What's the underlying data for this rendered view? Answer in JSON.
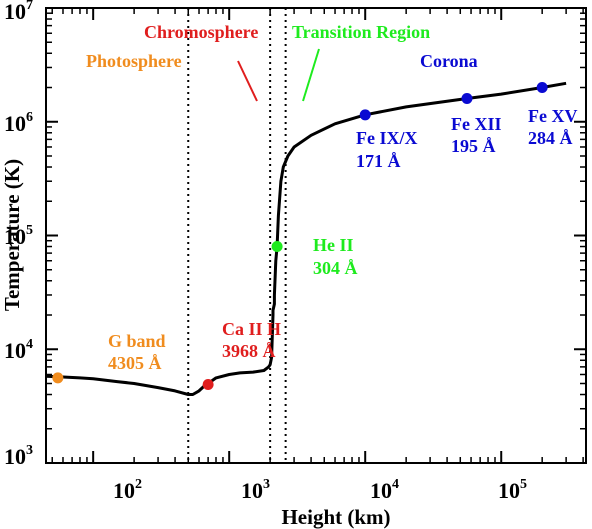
{
  "chart_data": {
    "type": "line",
    "title": "",
    "xlabel": "Height (km)",
    "ylabel": "Temperature (K)",
    "x_scale": "log",
    "y_scale": "log",
    "xlim": [
      45,
      420000
    ],
    "ylim": [
      1000,
      10000000
    ],
    "grid": false,
    "x_ticks": [
      {
        "base": "10",
        "exp": "2",
        "value": 100
      },
      {
        "base": "10",
        "exp": "3",
        "value": 1000
      },
      {
        "base": "10",
        "exp": "4",
        "value": 10000
      },
      {
        "base": "10",
        "exp": "5",
        "value": 100000
      }
    ],
    "y_ticks": [
      {
        "base": "10",
        "exp": "3",
        "value": 1000
      },
      {
        "base": "10",
        "exp": "4",
        "value": 10000
      },
      {
        "base": "10",
        "exp": "5",
        "value": 100000
      },
      {
        "base": "10",
        "exp": "6",
        "value": 1000000
      },
      {
        "base": "10",
        "exp": "7",
        "value": 10000000
      }
    ],
    "series": [
      {
        "color": "#000000",
        "x": [
          45,
          60,
          80,
          100,
          150,
          200,
          300,
          400,
          500,
          540,
          600,
          650,
          700,
          800,
          1000,
          1200,
          1500,
          1800,
          1950,
          2000,
          2050,
          2100,
          2100,
          2150,
          2150,
          2200,
          2250,
          2300,
          2400,
          2500,
          2700,
          3000,
          4000,
          6000,
          10000,
          20000,
          56000,
          100000,
          200000,
          300000
        ],
        "y": [
          5800,
          5700,
          5600,
          5500,
          5200,
          5000,
          4600,
          4300,
          4000,
          4000,
          4300,
          4700,
          5000,
          5600,
          6000,
          6200,
          6300,
          6500,
          7000,
          7300,
          8500,
          20000,
          22000,
          25000,
          30000,
          60000,
          80000,
          150000,
          300000,
          400000,
          500000,
          600000,
          760000,
          960000,
          1150000,
          1350000,
          1600000,
          1750000,
          2000000,
          2180000
        ]
      }
    ],
    "vlines": [
      {
        "x": 500,
        "style": "dotted"
      },
      {
        "x": 2000,
        "style": "dotted"
      },
      {
        "x": 2600,
        "style": "dotted"
      }
    ],
    "points": [
      {
        "name": "g-band-point",
        "x": 55,
        "y": 5600,
        "color": "#f08c1e"
      },
      {
        "name": "ca-ii-h-point",
        "x": 700,
        "y": 4900,
        "color": "#e01e1e"
      },
      {
        "name": "he-ii-point",
        "x": 2250,
        "y": 80000,
        "color": "#1eeb1e"
      },
      {
        "name": "fe-ix-x-point",
        "x": 10000,
        "y": 1150000,
        "color": "#0a0ad2"
      },
      {
        "name": "fe-xii-point",
        "x": 56000,
        "y": 1600000,
        "color": "#0a0ad2"
      },
      {
        "name": "fe-xv-point",
        "x": 200000,
        "y": 2000000,
        "color": "#0a0ad2"
      }
    ],
    "region_labels": [
      {
        "name": "photosphere-label",
        "text": "Photosphere",
        "color": "#f08c1e"
      },
      {
        "name": "chromosphere-label",
        "text": "Chromosphere",
        "color": "#e01e1e"
      },
      {
        "name": "transition-region-label",
        "text": "Transition Region",
        "color": "#1eeb1e"
      },
      {
        "name": "corona-label",
        "text": "Corona",
        "color": "#0a0ad2"
      }
    ],
    "annotations": [
      {
        "name": "g-band-annotation",
        "lines": [
          "G band",
          "4305 Å"
        ],
        "color": "#f08c1e"
      },
      {
        "name": "ca-ii-h-annotation",
        "lines": [
          "Ca II H",
          "3968 Å"
        ],
        "color": "#e01e1e"
      },
      {
        "name": "he-ii-annotation",
        "lines": [
          "He II",
          "304 Å"
        ],
        "color": "#1eeb1e"
      },
      {
        "name": "fe-ix-x-annotation",
        "lines": [
          "Fe IX/X",
          "171 Å"
        ],
        "color": "#0a0ad2"
      },
      {
        "name": "fe-xii-annotation",
        "lines": [
          "Fe XII",
          "195 Å"
        ],
        "color": "#0a0ad2"
      },
      {
        "name": "fe-xv-annotation",
        "lines": [
          "Fe XV",
          "284 Å"
        ],
        "color": "#0a0ad2"
      }
    ]
  }
}
